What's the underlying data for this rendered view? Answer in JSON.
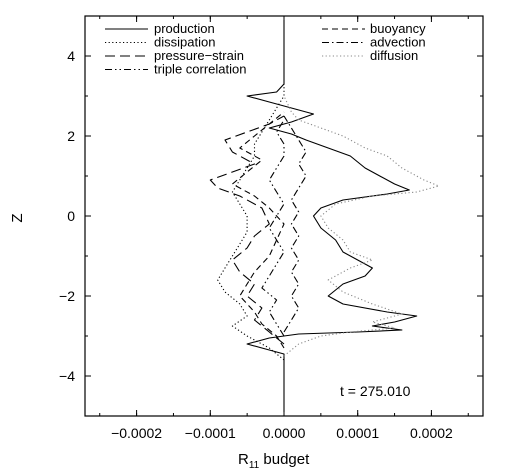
{
  "chart_data": {
    "type": "line",
    "title": "",
    "xlabel_base": "R",
    "xlabel_sub": "11",
    "xlabel_rest": " budget",
    "ylabel": "Z",
    "xlim": [
      -0.00027,
      0.00027
    ],
    "ylim": [
      -5,
      5
    ],
    "xticks": [
      -0.0002,
      -0.0001,
      0.0,
      0.0001,
      0.0002
    ],
    "xtick_labels": [
      "−0.0002",
      "−0.0001",
      "0.0000",
      "0.0001",
      "0.0002"
    ],
    "yticks": [
      -4,
      -2,
      0,
      2,
      4
    ],
    "ytick_labels": [
      "−4",
      "−2",
      "0",
      "2",
      "4"
    ],
    "grid": false,
    "legend_placement": "top",
    "annotation": "t = 275.010",
    "series": [
      {
        "name": "production",
        "style": "solid",
        "color": "#000000",
        "points": [
          [
            0,
            -4.9
          ],
          [
            0,
            -3.7
          ],
          [
            0,
            -3.45
          ],
          [
            -3e-05,
            -3.3
          ],
          [
            -5e-05,
            -3.2
          ],
          [
            -2e-05,
            -3.05
          ],
          [
            2e-05,
            -2.95
          ],
          [
            0.0001,
            -2.9
          ],
          [
            0.00016,
            -2.85
          ],
          [
            0.00012,
            -2.75
          ],
          [
            0.00015,
            -2.65
          ],
          [
            0.00018,
            -2.5
          ],
          [
            0.00014,
            -2.4
          ],
          [
            8e-05,
            -2.2
          ],
          [
            6e-05,
            -2.0
          ],
          [
            8e-05,
            -1.7
          ],
          [
            0.00011,
            -1.5
          ],
          [
            0.00012,
            -1.3
          ],
          [
            0.0001,
            -1.1
          ],
          [
            8e-05,
            -0.9
          ],
          [
            7e-05,
            -0.6
          ],
          [
            5e-05,
            -0.3
          ],
          [
            4e-05,
            0.0
          ],
          [
            5e-05,
            0.2
          ],
          [
            8e-05,
            0.4
          ],
          [
            0.00014,
            0.55
          ],
          [
            0.00017,
            0.65
          ],
          [
            0.00015,
            0.8
          ],
          [
            0.00013,
            1.0
          ],
          [
            0.00011,
            1.2
          ],
          [
            9e-05,
            1.5
          ],
          [
            6e-05,
            1.7
          ],
          [
            3e-05,
            1.9
          ],
          [
            1e-05,
            2.05
          ],
          [
            -2e-05,
            2.2
          ],
          [
            1e-05,
            2.35
          ],
          [
            4e-05,
            2.55
          ],
          [
            1e-05,
            2.7
          ],
          [
            -2e-05,
            2.85
          ],
          [
            -5e-05,
            3.0
          ],
          [
            -1e-05,
            3.1
          ],
          [
            0,
            3.3
          ],
          [
            0,
            3.6
          ],
          [
            0,
            4.9
          ]
        ]
      },
      {
        "name": "dissipation",
        "style": "dotted",
        "color": "#000000",
        "points": [
          [
            0,
            -3.6
          ],
          [
            -2e-05,
            -3.3
          ],
          [
            -5e-05,
            -3.0
          ],
          [
            -7e-05,
            -2.75
          ],
          [
            -5e-05,
            -2.5
          ],
          [
            -6e-05,
            -2.2
          ],
          [
            -8e-05,
            -1.9
          ],
          [
            -9e-05,
            -1.6
          ],
          [
            -8e-05,
            -1.3
          ],
          [
            -7e-05,
            -1.0
          ],
          [
            -6e-05,
            -0.7
          ],
          [
            -5e-05,
            -0.4
          ],
          [
            -5e-05,
            0.0
          ],
          [
            -6e-05,
            0.3
          ],
          [
            -7e-05,
            0.6
          ],
          [
            -6e-05,
            0.9
          ],
          [
            -5e-05,
            1.2
          ],
          [
            -4e-05,
            1.5
          ],
          [
            -4e-05,
            1.8
          ],
          [
            -3e-05,
            2.1
          ],
          [
            -2e-05,
            2.4
          ],
          [
            -1e-05,
            2.7
          ],
          [
            0,
            3.0
          ],
          [
            0,
            3.3
          ]
        ]
      },
      {
        "name": "pressure−strain",
        "style": "longdash",
        "color": "#000000",
        "points": [
          [
            0,
            -3.2
          ],
          [
            -2e-05,
            -2.9
          ],
          [
            -4e-05,
            -2.6
          ],
          [
            -3e-05,
            -2.3
          ],
          [
            -5e-05,
            -2.0
          ],
          [
            -4e-05,
            -1.7
          ],
          [
            -6e-05,
            -1.4
          ],
          [
            -7e-05,
            -1.1
          ],
          [
            -5e-05,
            -0.8
          ],
          [
            -4e-05,
            -0.5
          ],
          [
            -2e-05,
            -0.2
          ],
          [
            -3e-05,
            0.2
          ],
          [
            -6e-05,
            0.5
          ],
          [
            -9e-05,
            0.7
          ],
          [
            -0.0001,
            0.9
          ],
          [
            -7e-05,
            1.1
          ],
          [
            -4e-05,
            1.3
          ],
          [
            -7e-05,
            1.6
          ],
          [
            -8e-05,
            1.9
          ],
          [
            -5e-05,
            2.1
          ],
          [
            -2e-05,
            2.3
          ],
          [
            0,
            2.5
          ]
        ]
      },
      {
        "name": "triple correlation",
        "style": "dashdotdot",
        "color": "#000000",
        "points": [
          [
            0,
            -3.0
          ],
          [
            -1e-05,
            -2.7
          ],
          [
            -2e-05,
            -2.4
          ],
          [
            -1e-05,
            -2.1
          ],
          [
            -3e-05,
            -1.8
          ],
          [
            -2e-05,
            -1.5
          ],
          [
            -1e-05,
            -1.2
          ],
          [
            0,
            -0.9
          ],
          [
            -1e-05,
            -0.6
          ],
          [
            -2e-05,
            -0.3
          ],
          [
            -1e-05,
            0.0
          ],
          [
            0,
            0.3
          ],
          [
            -1e-05,
            0.6
          ],
          [
            -2e-05,
            0.9
          ],
          [
            -1e-05,
            1.2
          ],
          [
            0,
            1.5
          ],
          [
            0,
            1.8
          ],
          [
            -1e-05,
            2.1
          ],
          [
            0,
            2.4
          ]
        ]
      },
      {
        "name": "buoyancy",
        "style": "dashed",
        "color": "#000000",
        "points": [
          [
            0,
            -3.3
          ],
          [
            -1e-05,
            -3.0
          ],
          [
            -3e-05,
            -2.7
          ],
          [
            -4e-05,
            -2.4
          ],
          [
            -6e-05,
            -2.0
          ],
          [
            -5e-05,
            -1.7
          ],
          [
            -4e-05,
            -1.4
          ],
          [
            -2e-05,
            -1.0
          ],
          [
            -1e-05,
            -0.6
          ],
          [
            0,
            -0.2
          ],
          [
            -2e-05,
            0.2
          ],
          [
            -4e-05,
            0.5
          ],
          [
            -7e-05,
            0.8
          ],
          [
            -5e-05,
            1.1
          ],
          [
            -3e-05,
            1.4
          ],
          [
            -6e-05,
            1.7
          ],
          [
            -4e-05,
            2.0
          ],
          [
            -2e-05,
            2.3
          ],
          [
            0,
            2.6
          ]
        ]
      },
      {
        "name": "advection",
        "style": "dashdot",
        "color": "#000000",
        "points": [
          [
            0,
            -2.9
          ],
          [
            1e-05,
            -2.6
          ],
          [
            2e-05,
            -2.3
          ],
          [
            1e-05,
            -2.0
          ],
          [
            2e-05,
            -1.7
          ],
          [
            1e-05,
            -1.4
          ],
          [
            2e-05,
            -1.1
          ],
          [
            1e-05,
            -0.8
          ],
          [
            2e-05,
            -0.5
          ],
          [
            1e-05,
            -0.2
          ],
          [
            2e-05,
            0.1
          ],
          [
            1e-05,
            0.4
          ],
          [
            2e-05,
            0.7
          ],
          [
            3e-05,
            1.0
          ],
          [
            2e-05,
            1.3
          ],
          [
            3e-05,
            1.6
          ],
          [
            2e-05,
            1.9
          ],
          [
            1e-05,
            2.2
          ],
          [
            0,
            2.5
          ]
        ]
      },
      {
        "name": "diffusion",
        "style": "dotted",
        "color": "#8a8a8a",
        "points": [
          [
            0,
            -3.5
          ],
          [
            2e-05,
            -3.2
          ],
          [
            5e-05,
            -3.0
          ],
          [
            9e-05,
            -2.9
          ],
          [
            0.00015,
            -2.8
          ],
          [
            0.00012,
            -2.65
          ],
          [
            0.00016,
            -2.45
          ],
          [
            0.00012,
            -2.2
          ],
          [
            8e-05,
            -1.9
          ],
          [
            6e-05,
            -1.6
          ],
          [
            9e-05,
            -1.3
          ],
          [
            0.00012,
            -1.1
          ],
          [
            9e-05,
            -0.9
          ],
          [
            8e-05,
            -0.6
          ],
          [
            6e-05,
            -0.3
          ],
          [
            5e-05,
            0.0
          ],
          [
            7e-05,
            0.3
          ],
          [
            0.00012,
            0.5
          ],
          [
            0.00018,
            0.6
          ],
          [
            0.00021,
            0.75
          ],
          [
            0.00019,
            0.9
          ],
          [
            0.00016,
            1.2
          ],
          [
            0.00014,
            1.5
          ],
          [
            0.00011,
            1.7
          ],
          [
            8e-05,
            2.0
          ],
          [
            5e-05,
            2.2
          ],
          [
            2e-05,
            2.4
          ],
          [
            1e-05,
            2.6
          ],
          [
            0,
            3.0
          ]
        ]
      }
    ]
  }
}
